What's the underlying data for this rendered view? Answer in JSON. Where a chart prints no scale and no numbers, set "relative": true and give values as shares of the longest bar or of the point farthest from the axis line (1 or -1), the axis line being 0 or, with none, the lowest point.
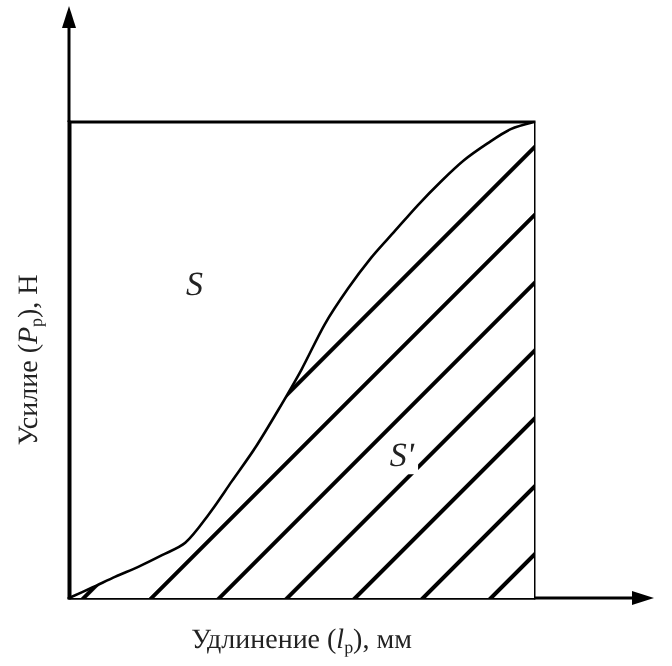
{
  "chart_data": {
    "type": "area",
    "relative": true,
    "xlabel": "Удлинение (l$_{р}$), мм",
    "ylabel": "Усилие (P$_{р}$), Н",
    "categories": [
      null,
      null,
      null,
      null,
      null,
      null,
      null,
      null,
      null,
      null,
      null,
      null,
      null,
      null,
      null,
      null,
      null,
      null,
      null,
      null,
      null
    ],
    "series": [
      {
        "color": "#000000",
        "values": [
          0,
          0.022,
          0.045,
          0.066,
          0.09,
          0.116,
          0.175,
          0.245,
          0.315,
          0.395,
          0.48,
          0.575,
          0.65,
          0.715,
          0.77,
          0.825,
          0.875,
          0.92,
          0.955,
          0.985,
          1
        ]
      }
    ],
    "annotations": [
      "S",
      "S'"
    ],
    "grid": false,
    "marker": "none",
    "line_style": "solid"
  }
}
